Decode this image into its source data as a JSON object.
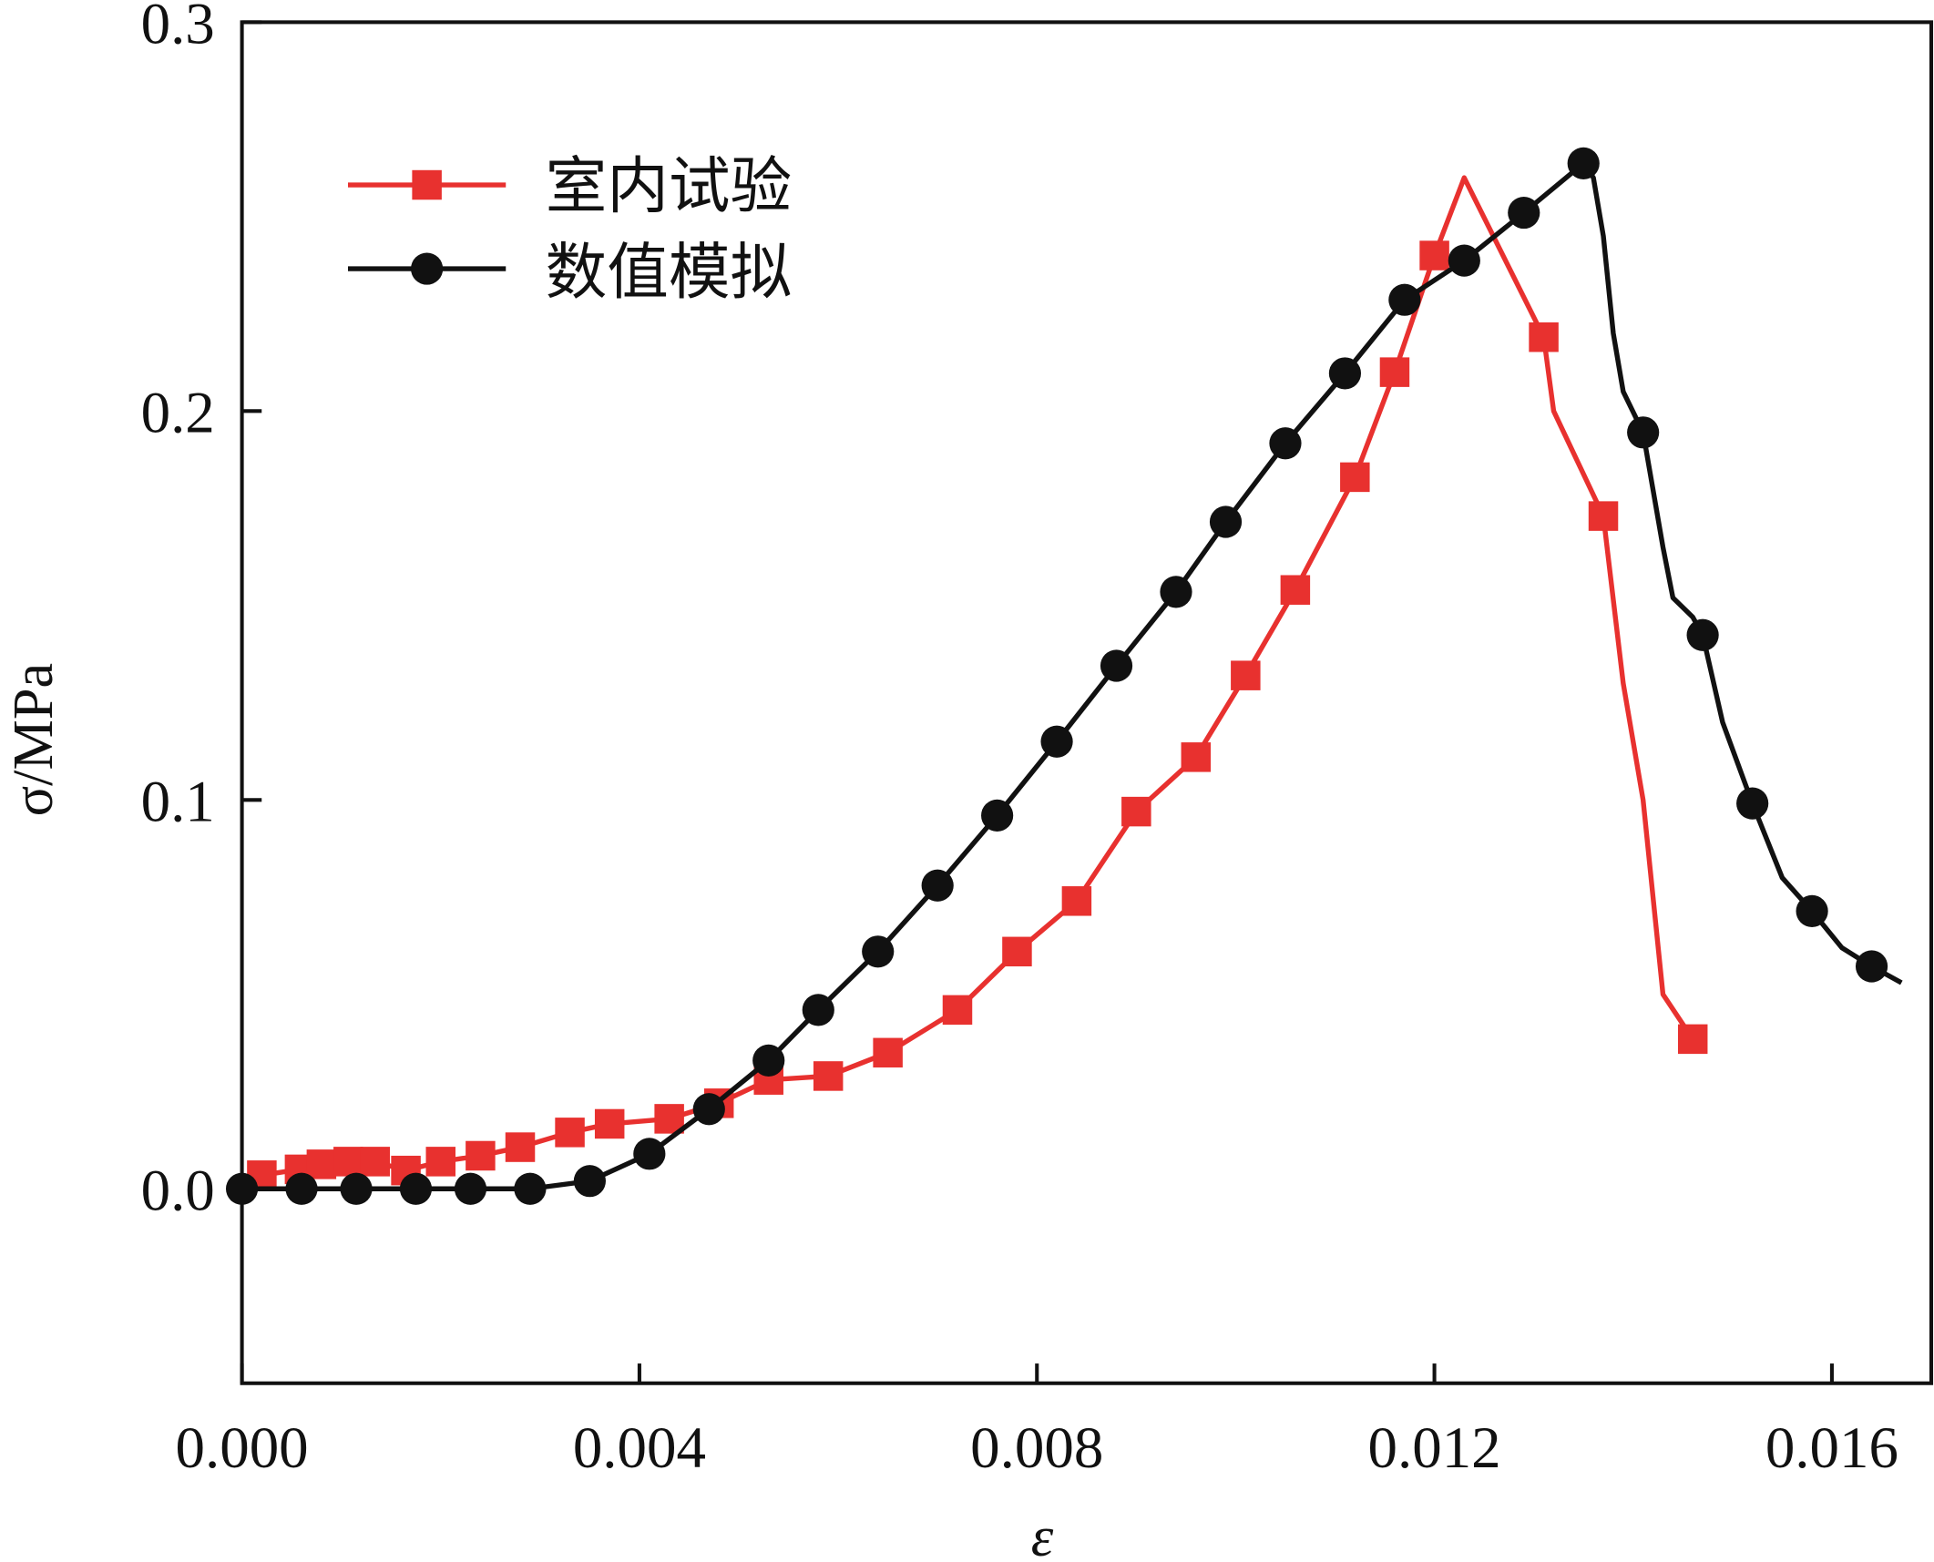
{
  "chart_data": {
    "type": "line",
    "title": "",
    "xlabel": "ε",
    "ylabel": "σ/MPa",
    "xlim": [
      0,
      0.017
    ],
    "ylim": [
      -0.05,
      0.3
    ],
    "xticks": [
      0,
      0.004,
      0.008,
      0.012,
      0.016
    ],
    "xtick_labels": [
      "0.000",
      "0.004",
      "0.008",
      "0.012",
      "0.016"
    ],
    "yticks": [
      0.0,
      0.1,
      0.2,
      0.3
    ],
    "ytick_labels": [
      "0.0",
      "0.1",
      "0.2",
      "0.3"
    ],
    "grid": false,
    "legend_position": "top-left",
    "series": [
      {
        "name": "室内试验",
        "color": "#e8312f",
        "marker": "square",
        "points": [
          [
            0,
            0.001
          ],
          [
            0.0002,
            0.0035
          ],
          [
            0.00058,
            0.005
          ],
          [
            0.0008,
            0.0063
          ],
          [
            0.00107,
            0.007
          ],
          [
            0.00134,
            0.007
          ],
          [
            0.00165,
            0.0047
          ],
          [
            0.002,
            0.007
          ],
          [
            0.0024,
            0.0085
          ],
          [
            0.0028,
            0.0107
          ],
          [
            0.0033,
            0.0145
          ],
          [
            0.0037,
            0.0167
          ],
          [
            0.0043,
            0.018
          ],
          [
            0.0048,
            0.022
          ],
          [
            0.0053,
            0.028
          ],
          [
            0.0059,
            0.029
          ],
          [
            0.0065,
            0.035
          ],
          [
            0.0072,
            0.046
          ],
          [
            0.0078,
            0.061
          ],
          [
            0.0084,
            0.074
          ],
          [
            0.009,
            0.097
          ],
          [
            0.0096,
            0.111
          ],
          [
            0.0101,
            0.132
          ],
          [
            0.0106,
            0.154
          ],
          [
            0.0112,
            0.183
          ],
          [
            0.0116,
            0.21
          ],
          [
            0.012,
            0.24
          ],
          [
            0.0123,
            0.26
          ],
          [
            0.0131,
            0.219
          ],
          [
            0.0132,
            0.2
          ],
          [
            0.0137,
            0.173
          ],
          [
            0.0139,
            0.13
          ],
          [
            0.0141,
            0.1
          ],
          [
            0.0143,
            0.05
          ],
          [
            0.0146,
            0.0385
          ]
        ],
        "markers": [
          [
            0.0002,
            0.0035
          ],
          [
            0.00058,
            0.005
          ],
          [
            0.0008,
            0.0063
          ],
          [
            0.00107,
            0.007
          ],
          [
            0.00134,
            0.007
          ],
          [
            0.00165,
            0.0047
          ],
          [
            0.002,
            0.007
          ],
          [
            0.0024,
            0.0085
          ],
          [
            0.0028,
            0.0107
          ],
          [
            0.0033,
            0.0145
          ],
          [
            0.0037,
            0.0167
          ],
          [
            0.0043,
            0.018
          ],
          [
            0.0048,
            0.022
          ],
          [
            0.0053,
            0.028
          ],
          [
            0.0059,
            0.029
          ],
          [
            0.0065,
            0.035
          ],
          [
            0.0072,
            0.046
          ],
          [
            0.0078,
            0.061
          ],
          [
            0.0084,
            0.074
          ],
          [
            0.009,
            0.097
          ],
          [
            0.0096,
            0.111
          ],
          [
            0.0101,
            0.132
          ],
          [
            0.0106,
            0.154
          ],
          [
            0.0112,
            0.183
          ],
          [
            0.0116,
            0.21
          ],
          [
            0.012,
            0.24
          ],
          [
            0.0131,
            0.219
          ],
          [
            0.0137,
            0.173
          ],
          [
            0.0146,
            0.0385
          ]
        ]
      },
      {
        "name": "数值模拟",
        "color": "#111111",
        "marker": "circle",
        "points": [
          [
            0,
            0
          ],
          [
            0.0006,
            0
          ],
          [
            0.00115,
            0
          ],
          [
            0.00175,
            0
          ],
          [
            0.0023,
            0
          ],
          [
            0.0029,
            0
          ],
          [
            0.0035,
            0.002
          ],
          [
            0.0041,
            0.009
          ],
          [
            0.0047,
            0.0205
          ],
          [
            0.0053,
            0.033
          ],
          [
            0.0058,
            0.046
          ],
          [
            0.0064,
            0.061
          ],
          [
            0.007,
            0.078
          ],
          [
            0.0076,
            0.096
          ],
          [
            0.0082,
            0.115
          ],
          [
            0.0088,
            0.1345
          ],
          [
            0.0094,
            0.1535
          ],
          [
            0.0099,
            0.1715
          ],
          [
            0.0105,
            0.1917
          ],
          [
            0.0111,
            0.2097
          ],
          [
            0.0117,
            0.2286
          ],
          [
            0.0123,
            0.2387
          ],
          [
            0.0129,
            0.251
          ],
          [
            0.0135,
            0.2637
          ],
          [
            0.0136,
            0.26
          ],
          [
            0.0137,
            0.245
          ],
          [
            0.0138,
            0.22
          ],
          [
            0.0139,
            0.205
          ],
          [
            0.0141,
            0.1945
          ],
          [
            0.0143,
            0.165
          ],
          [
            0.0144,
            0.152
          ],
          [
            0.0146,
            0.147
          ],
          [
            0.0147,
            0.1424
          ],
          [
            0.0149,
            0.12
          ],
          [
            0.0152,
            0.0991
          ],
          [
            0.0155,
            0.08
          ],
          [
            0.0158,
            0.0714
          ],
          [
            0.0161,
            0.062
          ],
          [
            0.0164,
            0.0572
          ],
          [
            0.0167,
            0.053
          ]
        ],
        "markers": [
          [
            0,
            0
          ],
          [
            0.0006,
            0
          ],
          [
            0.00115,
            0
          ],
          [
            0.00175,
            0
          ],
          [
            0.0023,
            0
          ],
          [
            0.0029,
            0
          ],
          [
            0.0035,
            0.002
          ],
          [
            0.0041,
            0.009
          ],
          [
            0.0047,
            0.0205
          ],
          [
            0.0053,
            0.033
          ],
          [
            0.0058,
            0.046
          ],
          [
            0.0064,
            0.061
          ],
          [
            0.007,
            0.078
          ],
          [
            0.0076,
            0.096
          ],
          [
            0.0082,
            0.115
          ],
          [
            0.0088,
            0.1345
          ],
          [
            0.0094,
            0.1535
          ],
          [
            0.0099,
            0.1715
          ],
          [
            0.0105,
            0.1917
          ],
          [
            0.0111,
            0.2097
          ],
          [
            0.0117,
            0.2286
          ],
          [
            0.0123,
            0.2387
          ],
          [
            0.0129,
            0.251
          ],
          [
            0.0135,
            0.2637
          ],
          [
            0.0141,
            0.1945
          ],
          [
            0.0147,
            0.1424
          ],
          [
            0.0152,
            0.0991
          ],
          [
            0.0158,
            0.0714
          ],
          [
            0.0164,
            0.0572
          ]
        ]
      }
    ]
  }
}
